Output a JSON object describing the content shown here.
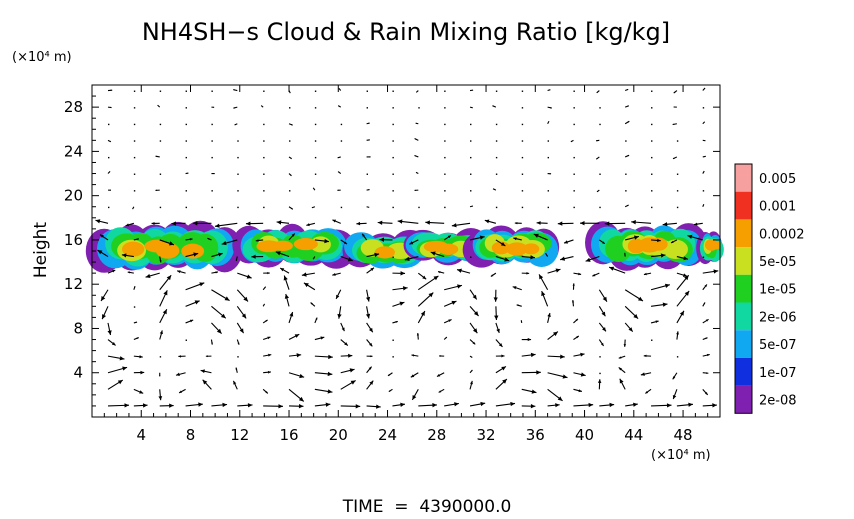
{
  "chart_data": {
    "type": "heatmap",
    "title": "NH4SH−s Cloud & Rain Mixing Ratio [kg/kg]",
    "ylabel": "Height",
    "y_unit": "(×10⁴ m)",
    "x_unit": "(×10⁴ m)",
    "xlabel": "",
    "xlim": [
      0,
      51
    ],
    "ylim": [
      0,
      30
    ],
    "xticks": [
      4,
      8,
      12,
      16,
      20,
      24,
      28,
      32,
      36,
      40,
      44,
      48
    ],
    "yticks": [
      4,
      8,
      12,
      16,
      20,
      24,
      28
    ],
    "grid": false,
    "colorbar": {
      "labels": [
        "0.005",
        "0.001",
        "0.0002",
        "5e-05",
        "1e-05",
        "2e-06",
        "5e-07",
        "1e-07",
        "2e-08"
      ],
      "colors": [
        "#f7a0a0",
        "#f03020",
        "#f5a000",
        "#c8e020",
        "#20d020",
        "#10d8a0",
        "#10a8f0",
        "#1030e0",
        "#8020b0"
      ]
    },
    "footer": "TIME  =  4390000.0",
    "cloud_patches": [
      {
        "x0": 0.3,
        "x1": 11.5,
        "y0": 13.4,
        "y1": 17.3
      },
      {
        "x0": 12.0,
        "x1": 20.5,
        "y0": 13.8,
        "y1": 17.0
      },
      {
        "x0": 21.0,
        "x1": 26.5,
        "y0": 13.6,
        "y1": 16.6
      },
      {
        "x0": 26.0,
        "x1": 31.5,
        "y0": 14.0,
        "y1": 16.7
      },
      {
        "x0": 31.0,
        "x1": 37.5,
        "y0": 13.8,
        "y1": 17.0
      },
      {
        "x0": 40.8,
        "x1": 49.3,
        "y0": 13.6,
        "y1": 17.2
      },
      {
        "x0": 49.7,
        "x1": 51.0,
        "y0": 14.0,
        "y1": 16.6
      }
    ],
    "wind_field": "2-D vector arrows over the whole domain"
  }
}
